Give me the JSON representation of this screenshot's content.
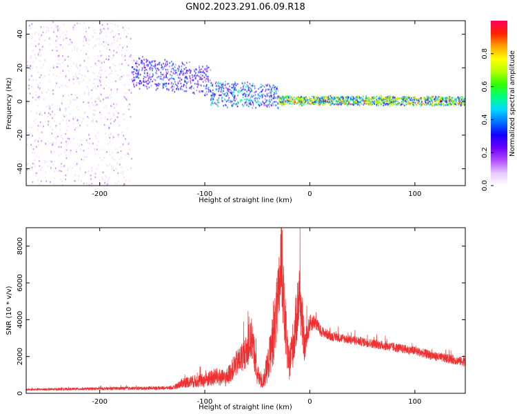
{
  "title": "GN02.2023.291.06.09.R18",
  "chart_data": [
    {
      "type": "heatmap",
      "xlabel": "Height of straight line (km)",
      "ylabel": "Frequency (Hz)",
      "xlim": [
        -270,
        148
      ],
      "ylim": [
        -50,
        48
      ],
      "x_ticks": [
        -200,
        -100,
        0,
        100
      ],
      "y_ticks": [
        -40,
        -20,
        0,
        20,
        40
      ],
      "colorbar": {
        "label": "Normalized spectral amplitude",
        "range": [
          0.0,
          1.0
        ],
        "ticks": [
          0.0,
          0.2,
          0.4,
          0.6,
          0.8
        ],
        "colors": [
          "#ffffff",
          "#e6c8ff",
          "#b04bff",
          "#6a00ff",
          "#1200ff",
          "#0070ff",
          "#00d8ff",
          "#00ff80",
          "#30ff00",
          "#b8ff00",
          "#ffff00",
          "#ffa000",
          "#ff2000",
          "#ff0060"
        ]
      },
      "regions": [
        {
          "x": [
            -270,
            -170
          ],
          "freq_center": 0,
          "freq_spread": 50,
          "amplitude": 0.08,
          "description": "scattered noise"
        },
        {
          "x": [
            -170,
            -95
          ],
          "freq_center": 18,
          "freq_spread": 10,
          "amplitude": 0.35
        },
        {
          "x": [
            -95,
            -30
          ],
          "freq_center": 5,
          "freq_spread": 8,
          "amplitude": 0.45
        },
        {
          "x": [
            -30,
            148
          ],
          "freq_center": 1,
          "freq_spread": 3,
          "amplitude": 0.75
        }
      ]
    },
    {
      "type": "line",
      "xlabel": "Height of straight line (km)",
      "ylabel": "SNR (10 * v/v)",
      "xlim": [
        -270,
        148
      ],
      "ylim": [
        0,
        9000
      ],
      "x_ticks": [
        -200,
        -100,
        0,
        100
      ],
      "y_ticks": [
        0,
        2000,
        4000,
        6000,
        8000
      ],
      "series": [
        {
          "color": "#ee3030",
          "x": [
            -270,
            -200,
            -130,
            -120,
            -100,
            -90,
            -80,
            -70,
            -60,
            -55,
            -50,
            -45,
            -40,
            -35,
            -30,
            -27,
            -24,
            -20,
            -15,
            -10,
            -5,
            0,
            5,
            10,
            20,
            40,
            60,
            80,
            100,
            120,
            148
          ],
          "y": [
            200,
            250,
            300,
            600,
            700,
            900,
            800,
            1600,
            2300,
            3000,
            1000,
            600,
            1500,
            3000,
            5000,
            7500,
            4000,
            1500,
            3000,
            5500,
            2500,
            3800,
            3900,
            3400,
            3100,
            2900,
            2700,
            2500,
            2300,
            2000,
            1700
          ],
          "noise": [
            60,
            80,
            100,
            300,
            400,
            500,
            450,
            700,
            900,
            1200,
            600,
            400,
            900,
            1500,
            2000,
            2500,
            1800,
            900,
            1400,
            1800,
            900,
            500,
            400,
            300,
            250,
            250,
            250,
            250,
            250,
            250,
            250
          ]
        }
      ]
    }
  ]
}
